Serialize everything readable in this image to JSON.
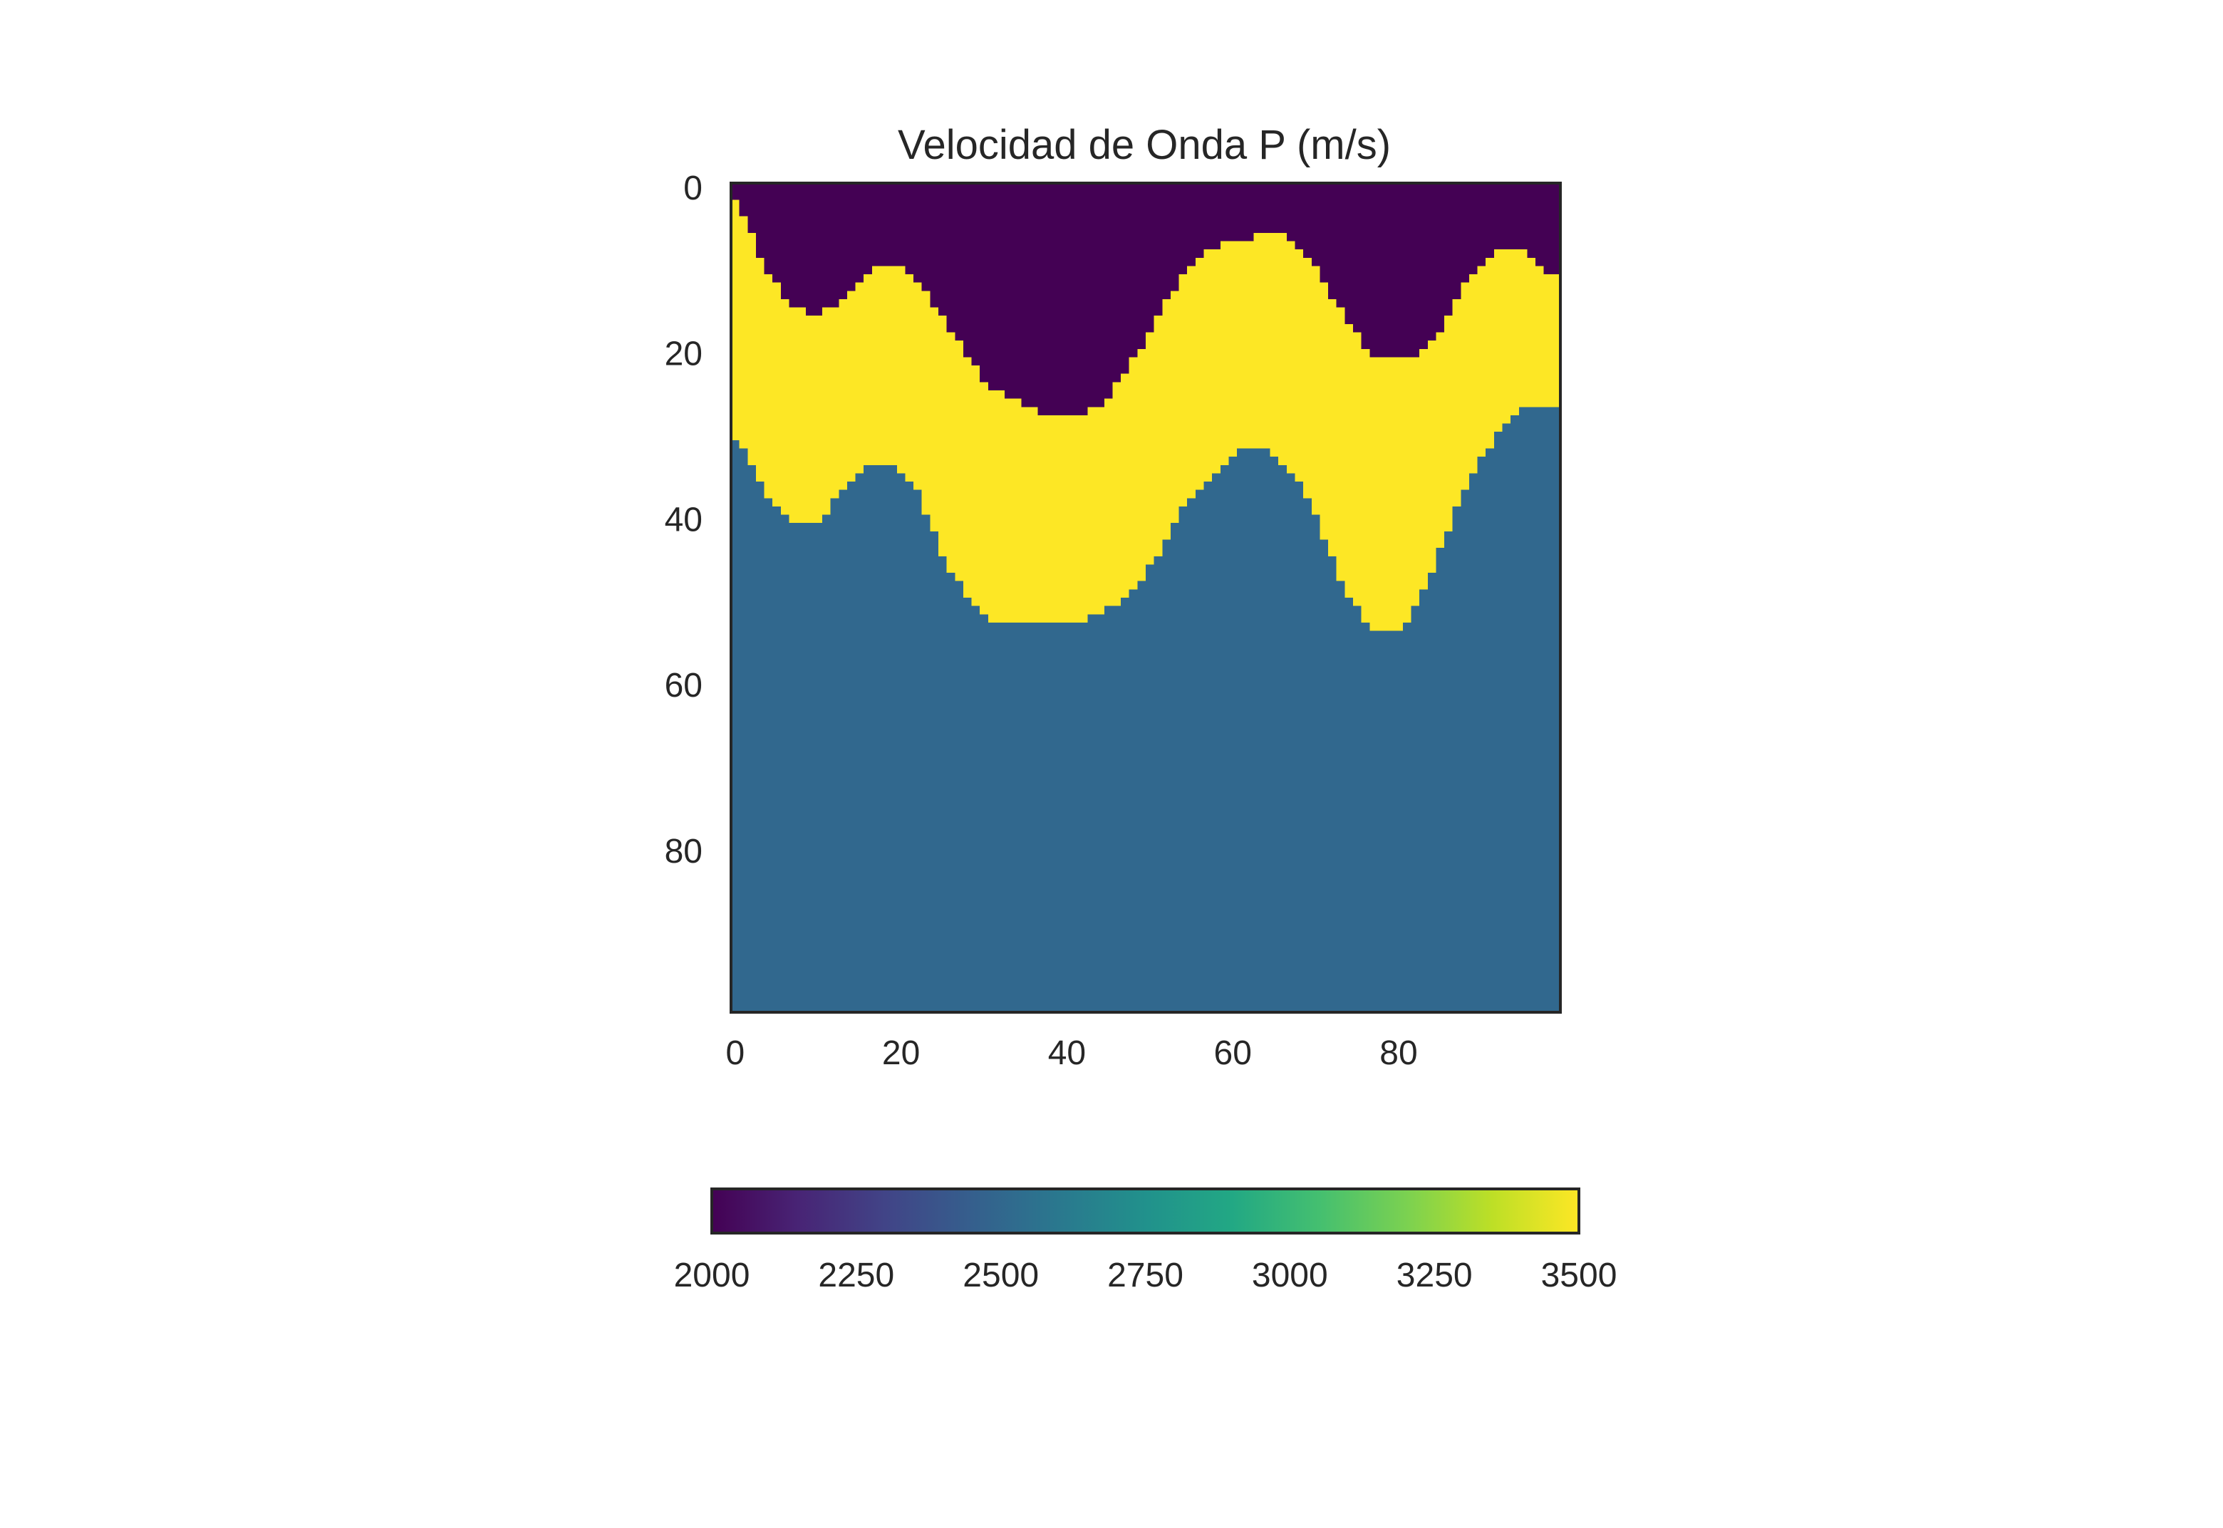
{
  "chart_data": {
    "type": "heatmap",
    "title": "Velocidad de Onda P (m/s)",
    "xlabel": "",
    "ylabel": "",
    "grid_shape": [
      100,
      100
    ],
    "xlim": [
      0,
      99
    ],
    "ylim": [
      99,
      0
    ],
    "x_ticks": [
      0,
      20,
      40,
      60,
      80
    ],
    "y_ticks": [
      0,
      20,
      40,
      60,
      80
    ],
    "colormap": "viridis",
    "colorbar": {
      "orientation": "horizontal",
      "location": "bottom",
      "range": [
        2000,
        3500
      ],
      "ticks": [
        2000,
        2250,
        2500,
        2750,
        3000,
        3250,
        3500
      ]
    },
    "layers": [
      {
        "value": 2000,
        "color": "#440154"
      },
      {
        "value": 3500,
        "color": "#fde725"
      },
      {
        "value": 2550,
        "color": "#31688e"
      }
    ],
    "interface_top": {
      "x": [
        0,
        2,
        4,
        6,
        8,
        10,
        12,
        14,
        16,
        18,
        20,
        22,
        24,
        26,
        28,
        30,
        32,
        34,
        36,
        38,
        40,
        42,
        44,
        46,
        48,
        50,
        52,
        54,
        56,
        58,
        60,
        62,
        64,
        66,
        68,
        70,
        72,
        74,
        76,
        78,
        80,
        82,
        84,
        86,
        88,
        90,
        92,
        94,
        96,
        98,
        99
      ],
      "depth": [
        1,
        5,
        10,
        13,
        15,
        16,
        15,
        13,
        11,
        10,
        10,
        11,
        14,
        17,
        20,
        23,
        25,
        26,
        27,
        28,
        28,
        28,
        27,
        25,
        22,
        19,
        15,
        12,
        9,
        8,
        7,
        7,
        6,
        6,
        7,
        9,
        13,
        16,
        19,
        21,
        21,
        21,
        20,
        17,
        13,
        10,
        8,
        8,
        8,
        10,
        11
      ]
    },
    "interface_bottom": {
      "x": [
        0,
        2,
        4,
        6,
        8,
        10,
        12,
        14,
        16,
        18,
        20,
        22,
        24,
        26,
        28,
        30,
        32,
        34,
        36,
        38,
        40,
        42,
        44,
        46,
        48,
        50,
        52,
        54,
        56,
        58,
        60,
        62,
        64,
        66,
        68,
        70,
        72,
        74,
        76,
        78,
        80,
        82,
        84,
        86,
        88,
        90,
        92,
        94,
        96,
        98,
        99
      ],
      "depth": [
        30,
        33,
        37,
        40,
        41,
        41,
        39,
        36,
        34,
        34,
        34,
        36,
        41,
        46,
        49,
        52,
        53,
        53,
        53,
        53,
        53,
        53,
        52,
        51,
        49,
        47,
        44,
        40,
        37,
        35,
        33,
        32,
        32,
        33,
        35,
        39,
        44,
        49,
        52,
        54,
        54,
        52,
        48,
        43,
        38,
        34,
        31,
        28,
        27,
        27,
        27
      ]
    }
  }
}
